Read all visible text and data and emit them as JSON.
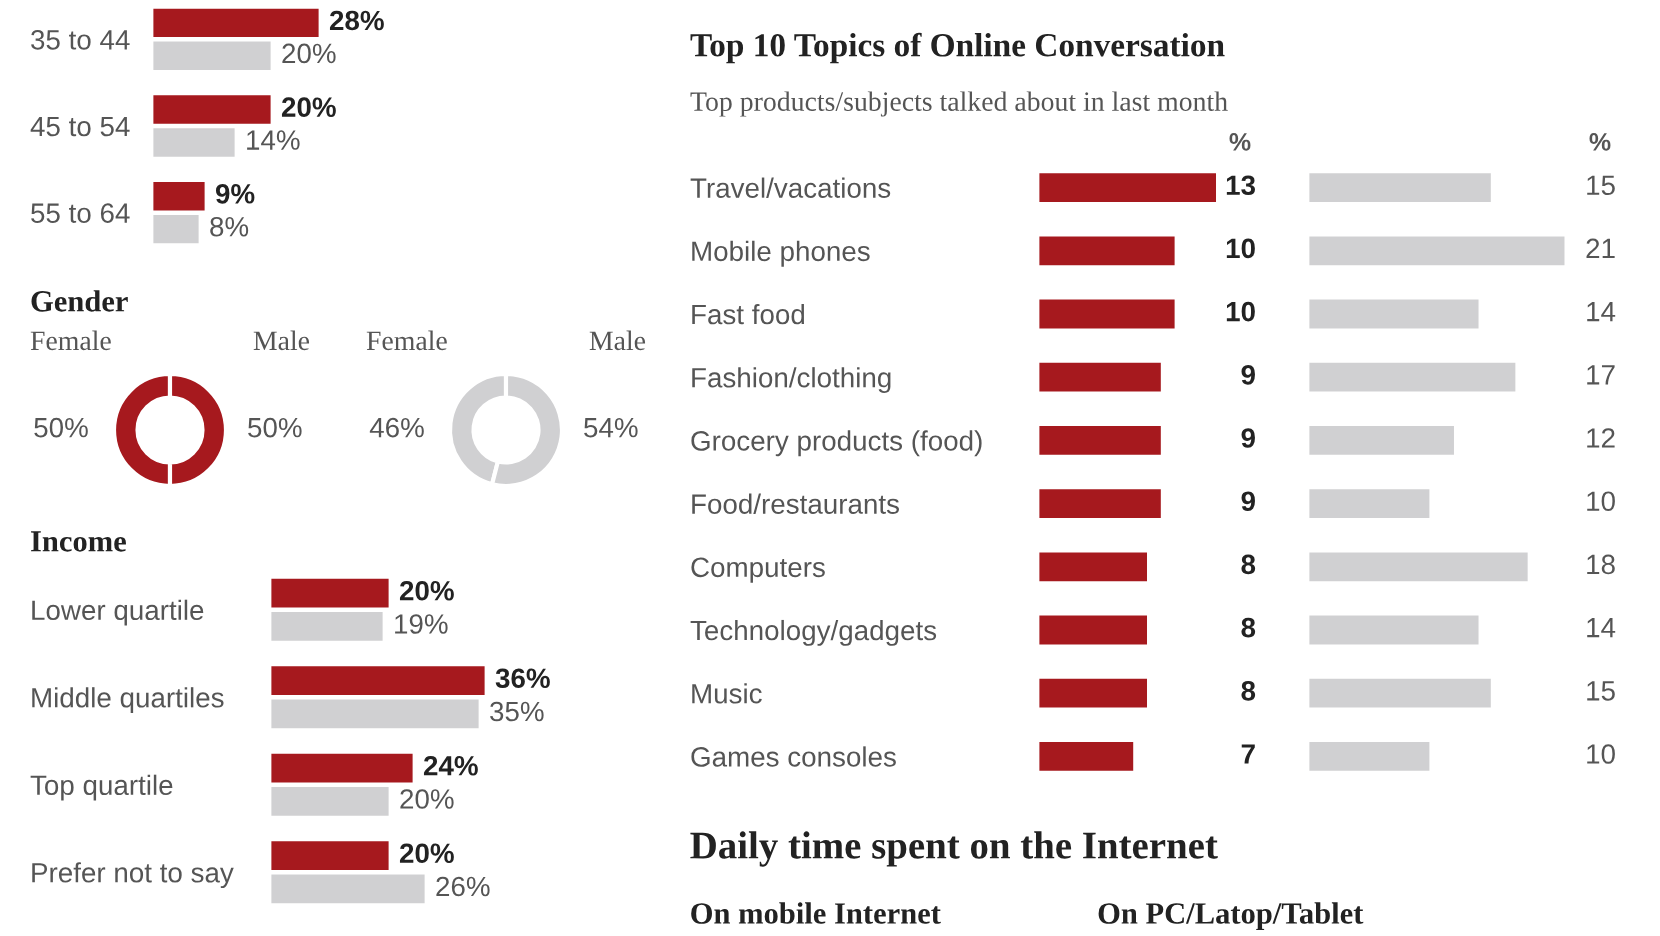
{
  "chart_data": [
    {
      "type": "bar",
      "orientation": "horizontal",
      "categories": [
        "35 to 44",
        "45 to 54",
        "55 to 64"
      ],
      "series": [
        {
          "color": "#a6191e",
          "values": [
            28,
            20,
            9
          ],
          "value_labels": [
            "28%",
            "20%",
            "9%"
          ]
        },
        {
          "color": "#d0d0d2",
          "values": [
            20,
            14,
            8
          ],
          "value_labels": [
            "20%",
            "14%",
            "8%"
          ]
        }
      ]
    },
    {
      "type": "donut",
      "title": "Gender",
      "categories": [
        "Female",
        "Male"
      ],
      "values": [
        50,
        50
      ],
      "colors": [
        "#a6191e",
        "#a6191e"
      ],
      "value_labels": [
        "50%",
        "50%"
      ]
    },
    {
      "type": "donut",
      "categories": [
        "Female",
        "Male"
      ],
      "values": [
        46,
        54
      ],
      "colors": [
        "#d0d0d2",
        "#d0d0d2"
      ],
      "value_labels": [
        "46%",
        "54%"
      ]
    },
    {
      "type": "bar",
      "orientation": "horizontal",
      "title": "Income",
      "categories": [
        "Lower quartile",
        "Middle quartiles",
        "Top quartile",
        "Prefer not to say"
      ],
      "series": [
        {
          "color": "#a6191e",
          "values": [
            20,
            36,
            24,
            20
          ],
          "value_labels": [
            "20%",
            "36%",
            "24%",
            "20%"
          ]
        },
        {
          "color": "#d0d0d2",
          "values": [
            19,
            35,
            20,
            26
          ],
          "value_labels": [
            "19%",
            "35%",
            "20%",
            "26%"
          ]
        }
      ]
    },
    {
      "type": "bar",
      "orientation": "horizontal",
      "title": "Top 10 Topics of Online Conversation",
      "subtitle": "Top products/subjects talked about in last month",
      "annotations": [
        "%"
      ],
      "categories": [
        "Travel/vacations",
        "Mobile phones",
        "Fast food",
        "Fashion/clothing",
        "Grocery products (food)",
        "Food/restaurants",
        "Computers",
        "Technology/gadgets",
        "Music",
        "Games consoles"
      ],
      "data_labels": true,
      "series": [
        {
          "color": "#a6191e",
          "values": [
            13,
            10,
            10,
            9,
            9,
            9,
            8,
            8,
            8,
            7
          ]
        }
      ]
    },
    {
      "type": "bar",
      "orientation": "horizontal",
      "annotations": [
        "%"
      ],
      "categories": [
        null,
        null,
        null,
        null,
        null,
        null,
        null,
        null,
        null,
        null
      ],
      "data_labels": true,
      "series": [
        {
          "color": "#d0d0d2",
          "values": [
            15,
            21,
            14,
            17,
            12,
            10,
            18,
            14,
            15,
            10
          ]
        }
      ]
    },
    {
      "type": "other",
      "title": "Daily time spent on the Internet",
      "annotations": [
        "On mobile Internet",
        "On PC/Latop/Tablet"
      ]
    }
  ]
}
